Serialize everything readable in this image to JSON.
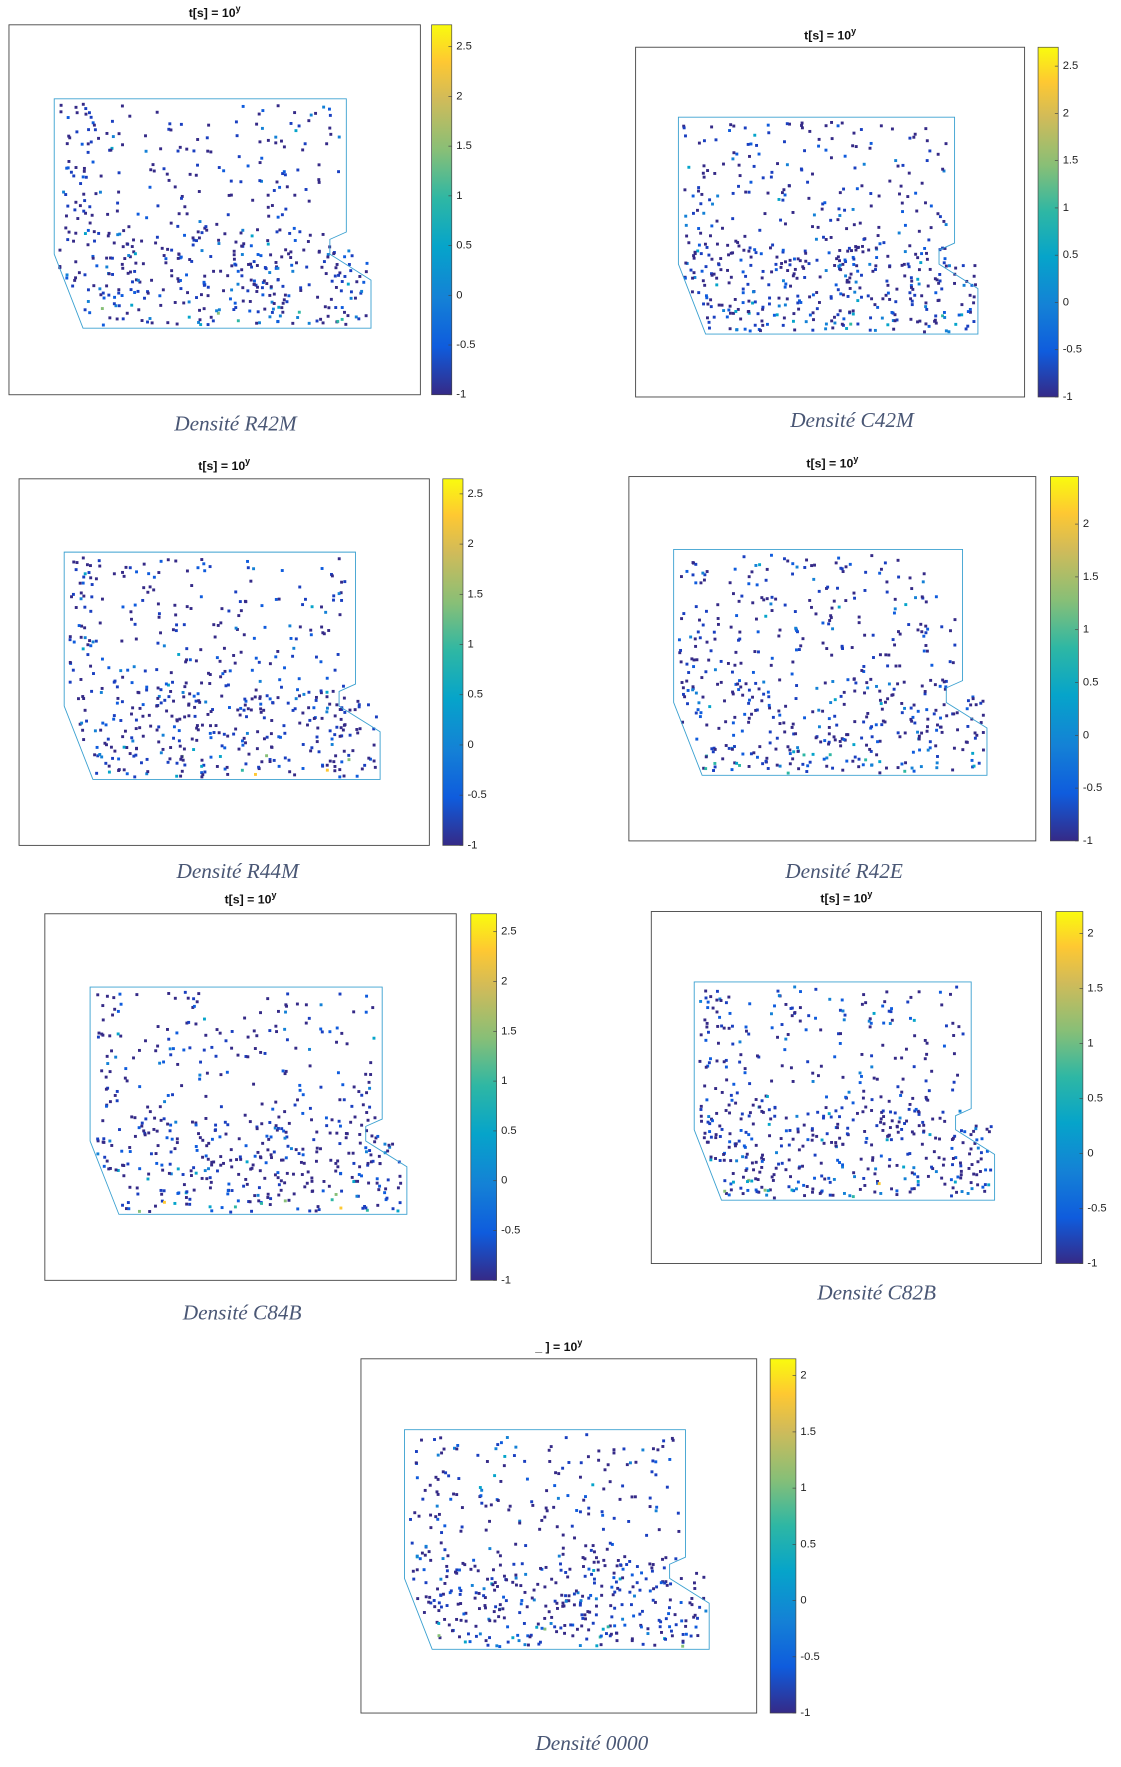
{
  "chart_data": [
    {
      "type": "heatmap",
      "title": "t[s] = 10",
      "title_sup": "y",
      "caption": "Densité R42M",
      "clim": [
        -1,
        2.72
      ],
      "cticks": [
        2.5,
        2,
        1.5,
        1,
        0.5,
        0,
        -0.5,
        -1
      ]
    },
    {
      "type": "heatmap",
      "title": "t[s] = 10",
      "title_sup": "y",
      "caption": "Densité C42M",
      "clim": [
        -1,
        2.7
      ],
      "cticks": [
        2.5,
        2,
        1.5,
        1,
        0.5,
        0,
        -0.5,
        -1
      ]
    },
    {
      "type": "heatmap",
      "title": "t[s] = 10",
      "title_sup": "y",
      "caption": "Densité R44M",
      "clim": [
        -1,
        2.65
      ],
      "cticks": [
        2.5,
        2,
        1.5,
        1,
        0.5,
        0,
        -0.5,
        -1
      ]
    },
    {
      "type": "heatmap",
      "title": "t[s] = 10",
      "title_sup": "y",
      "caption": "Densité R42E",
      "clim": [
        -1,
        2.45
      ],
      "cticks": [
        2,
        1.5,
        1,
        0.5,
        0,
        -0.5,
        -1
      ]
    },
    {
      "type": "heatmap",
      "title": "t[s] = 10",
      "title_sup": "y",
      "caption": "Densité C84B",
      "clim": [
        -1,
        2.68
      ],
      "cticks": [
        2.5,
        2,
        1.5,
        1,
        0.5,
        0,
        -0.5,
        -1
      ]
    },
    {
      "type": "heatmap",
      "title": "t[s] = 10",
      "title_sup": "y",
      "caption": "Densité C82B",
      "clim": [
        -1,
        2.2
      ],
      "cticks": [
        2,
        1.5,
        1,
        0.5,
        0,
        -0.5,
        -1
      ]
    },
    {
      "type": "heatmap",
      "title": "_ ] = 10",
      "title_sup": "y",
      "caption": "Densité 0000",
      "clim": [
        -1,
        2.15
      ],
      "cticks": [
        2,
        1.5,
        1,
        0.5,
        0,
        -0.5,
        -1
      ]
    }
  ]
}
